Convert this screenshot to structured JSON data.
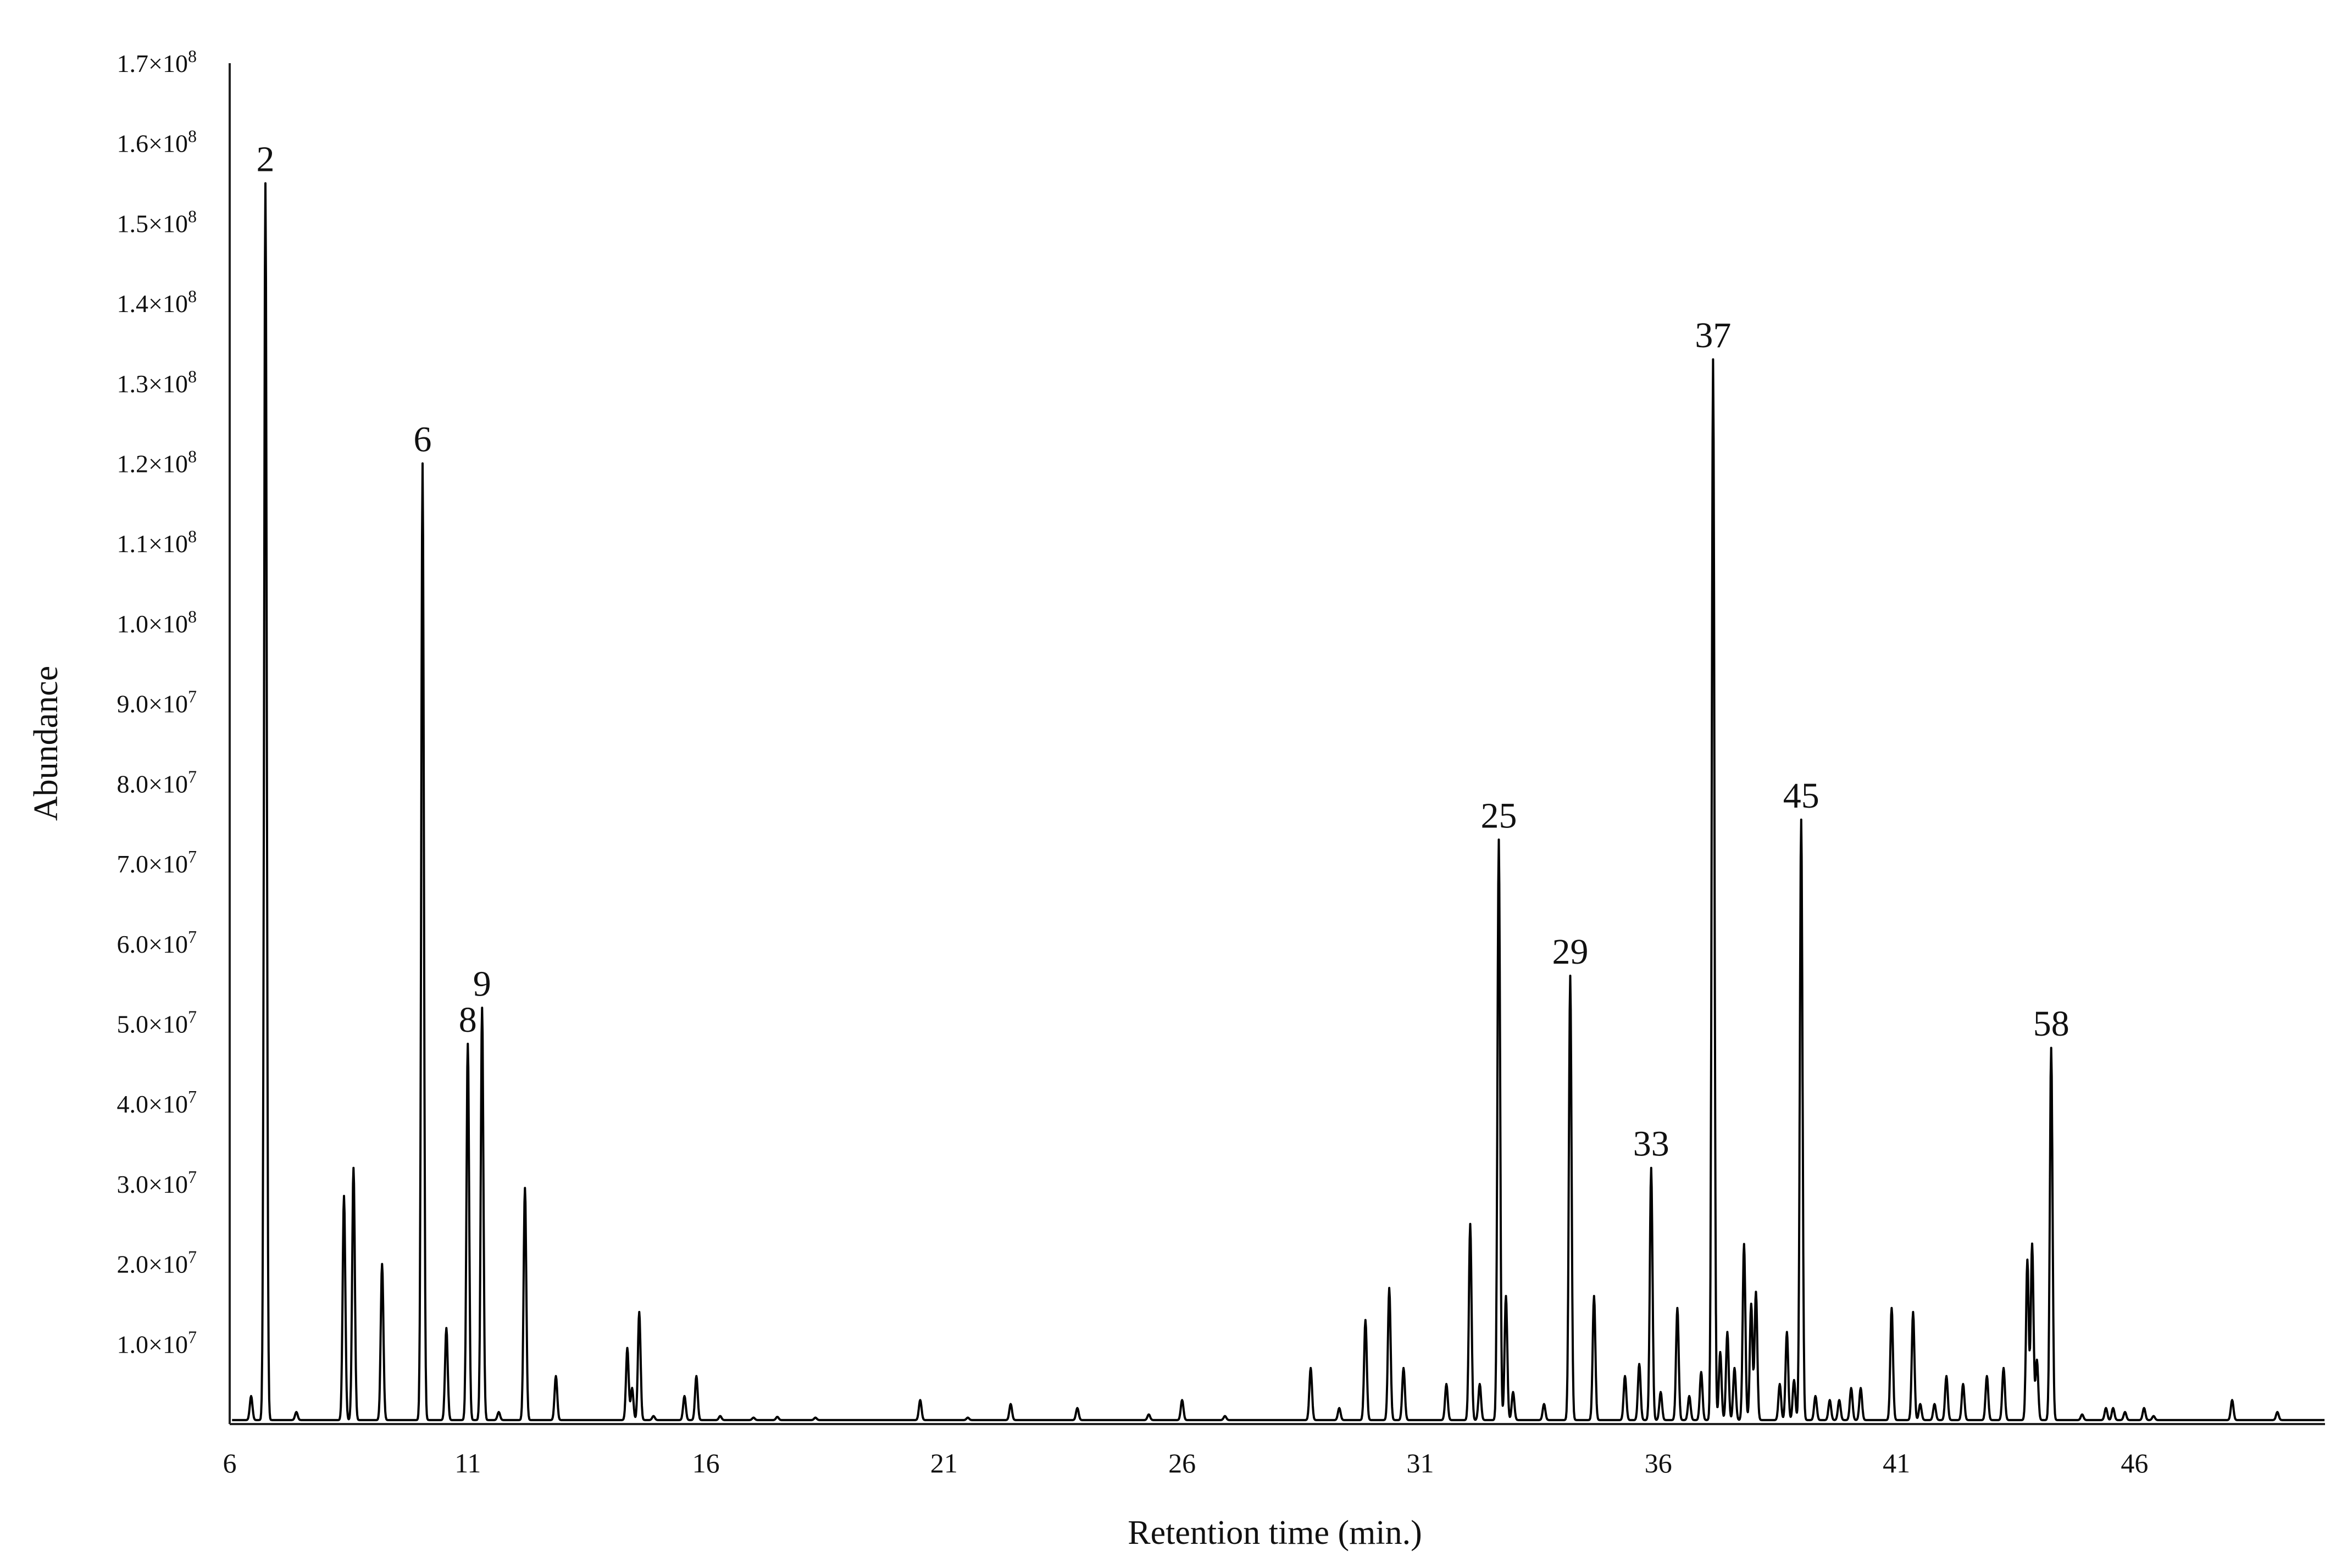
{
  "chart_data": {
    "type": "line",
    "title": "",
    "xlabel": "Retention time (min.)",
    "ylabel": "Abundance",
    "xlim": [
      6,
      50
    ],
    "ylim": [
      0,
      170000000
    ],
    "grid": false,
    "legend": "none",
    "line_color": "#000000",
    "x_ticks": [
      {
        "value": 6,
        "label": "6"
      },
      {
        "value": 11,
        "label": "11"
      },
      {
        "value": 16,
        "label": "16"
      },
      {
        "value": 21,
        "label": "21"
      },
      {
        "value": 26,
        "label": "26"
      },
      {
        "value": 31,
        "label": "31"
      },
      {
        "value": 36,
        "label": "36"
      },
      {
        "value": 41,
        "label": "41"
      },
      {
        "value": 46,
        "label": "46"
      }
    ],
    "y_ticks": [
      {
        "value": 10000000,
        "mantissa": "1.0×10",
        "exp": "7"
      },
      {
        "value": 20000000,
        "mantissa": "2.0×10",
        "exp": "7"
      },
      {
        "value": 30000000,
        "mantissa": "3.0×10",
        "exp": "7"
      },
      {
        "value": 40000000,
        "mantissa": "4.0×10",
        "exp": "7"
      },
      {
        "value": 50000000,
        "mantissa": "5.0×10",
        "exp": "7"
      },
      {
        "value": 60000000,
        "mantissa": "6.0×10",
        "exp": "7"
      },
      {
        "value": 70000000,
        "mantissa": "7.0×10",
        "exp": "7"
      },
      {
        "value": 80000000,
        "mantissa": "8.0×10",
        "exp": "7"
      },
      {
        "value": 90000000,
        "mantissa": "9.0×10",
        "exp": "7"
      },
      {
        "value": 100000000,
        "mantissa": "1.0×10",
        "exp": "8"
      },
      {
        "value": 110000000,
        "mantissa": "1.1×10",
        "exp": "8"
      },
      {
        "value": 120000000,
        "mantissa": "1.2×10",
        "exp": "8"
      },
      {
        "value": 130000000,
        "mantissa": "1.3×10",
        "exp": "8"
      },
      {
        "value": 140000000,
        "mantissa": "1.4×10",
        "exp": "8"
      },
      {
        "value": 150000000,
        "mantissa": "1.5×10",
        "exp": "8"
      },
      {
        "value": 160000000,
        "mantissa": "1.6×10",
        "exp": "8"
      },
      {
        "value": 170000000,
        "mantissa": "1.7×10",
        "exp": "8"
      }
    ],
    "baseline": 500000,
    "peaks": [
      {
        "x": 6.45,
        "y": 3500000
      },
      {
        "x": 6.75,
        "y": 155000000,
        "label": "2"
      },
      {
        "x": 7.4,
        "y": 1500000
      },
      {
        "x": 8.4,
        "y": 28500000
      },
      {
        "x": 8.6,
        "y": 32000000
      },
      {
        "x": 9.2,
        "y": 20000000
      },
      {
        "x": 10.05,
        "y": 120000000,
        "label": "6"
      },
      {
        "x": 10.55,
        "y": 12000000
      },
      {
        "x": 11.0,
        "y": 47500000,
        "label": "8"
      },
      {
        "x": 11.3,
        "y": 52000000,
        "label": "9"
      },
      {
        "x": 11.65,
        "y": 1500000
      },
      {
        "x": 12.2,
        "y": 29500000
      },
      {
        "x": 12.85,
        "y": 6000000
      },
      {
        "x": 14.35,
        "y": 9500000
      },
      {
        "x": 14.45,
        "y": 4500000
      },
      {
        "x": 14.6,
        "y": 14000000
      },
      {
        "x": 14.9,
        "y": 1000000
      },
      {
        "x": 15.55,
        "y": 3500000
      },
      {
        "x": 15.8,
        "y": 6000000
      },
      {
        "x": 16.3,
        "y": 1000000
      },
      {
        "x": 17.0,
        "y": 800000
      },
      {
        "x": 17.5,
        "y": 900000
      },
      {
        "x": 18.3,
        "y": 800000
      },
      {
        "x": 20.5,
        "y": 3000000
      },
      {
        "x": 21.5,
        "y": 800000
      },
      {
        "x": 22.4,
        "y": 2500000
      },
      {
        "x": 23.8,
        "y": 2000000
      },
      {
        "x": 25.3,
        "y": 1200000
      },
      {
        "x": 26.0,
        "y": 3000000
      },
      {
        "x": 26.9,
        "y": 1000000
      },
      {
        "x": 28.7,
        "y": 7000000
      },
      {
        "x": 29.3,
        "y": 2000000
      },
      {
        "x": 29.85,
        "y": 13000000
      },
      {
        "x": 30.35,
        "y": 17000000
      },
      {
        "x": 30.65,
        "y": 7000000
      },
      {
        "x": 31.55,
        "y": 5000000
      },
      {
        "x": 32.05,
        "y": 25000000
      },
      {
        "x": 32.25,
        "y": 5000000
      },
      {
        "x": 32.65,
        "y": 73000000,
        "label": "25"
      },
      {
        "x": 32.8,
        "y": 16000000
      },
      {
        "x": 32.95,
        "y": 4000000
      },
      {
        "x": 33.6,
        "y": 2500000
      },
      {
        "x": 34.15,
        "y": 56000000,
        "label": "29"
      },
      {
        "x": 34.65,
        "y": 16000000
      },
      {
        "x": 35.3,
        "y": 6000000
      },
      {
        "x": 35.6,
        "y": 7500000
      },
      {
        "x": 35.85,
        "y": 32000000,
        "label": "33"
      },
      {
        "x": 36.05,
        "y": 4000000
      },
      {
        "x": 36.4,
        "y": 14500000
      },
      {
        "x": 36.65,
        "y": 3500000
      },
      {
        "x": 36.9,
        "y": 6500000
      },
      {
        "x": 37.15,
        "y": 133000000,
        "label": "37"
      },
      {
        "x": 37.3,
        "y": 9000000
      },
      {
        "x": 37.45,
        "y": 11500000
      },
      {
        "x": 37.6,
        "y": 7000000
      },
      {
        "x": 37.8,
        "y": 22500000
      },
      {
        "x": 37.95,
        "y": 15000000
      },
      {
        "x": 38.05,
        "y": 16500000
      },
      {
        "x": 38.55,
        "y": 5000000
      },
      {
        "x": 38.7,
        "y": 11500000
      },
      {
        "x": 38.85,
        "y": 5500000
      },
      {
        "x": 39.0,
        "y": 75500000,
        "label": "45"
      },
      {
        "x": 39.3,
        "y": 3500000
      },
      {
        "x": 39.6,
        "y": 3000000
      },
      {
        "x": 39.8,
        "y": 3000000
      },
      {
        "x": 40.05,
        "y": 4500000
      },
      {
        "x": 40.25,
        "y": 4500000
      },
      {
        "x": 40.9,
        "y": 14500000
      },
      {
        "x": 41.35,
        "y": 14000000
      },
      {
        "x": 41.5,
        "y": 2500000
      },
      {
        "x": 41.8,
        "y": 2500000
      },
      {
        "x": 42.05,
        "y": 6000000
      },
      {
        "x": 42.4,
        "y": 5000000
      },
      {
        "x": 42.9,
        "y": 6000000
      },
      {
        "x": 43.25,
        "y": 7000000
      },
      {
        "x": 43.75,
        "y": 20500000
      },
      {
        "x": 43.85,
        "y": 22500000
      },
      {
        "x": 43.95,
        "y": 8000000
      },
      {
        "x": 44.25,
        "y": 47000000,
        "label": "58"
      },
      {
        "x": 44.9,
        "y": 1200000
      },
      {
        "x": 45.4,
        "y": 2000000
      },
      {
        "x": 45.55,
        "y": 2000000
      },
      {
        "x": 45.8,
        "y": 1500000
      },
      {
        "x": 46.2,
        "y": 2000000
      },
      {
        "x": 46.4,
        "y": 1000000
      },
      {
        "x": 48.05,
        "y": 3000000
      },
      {
        "x": 49.0,
        "y": 1500000
      }
    ]
  }
}
